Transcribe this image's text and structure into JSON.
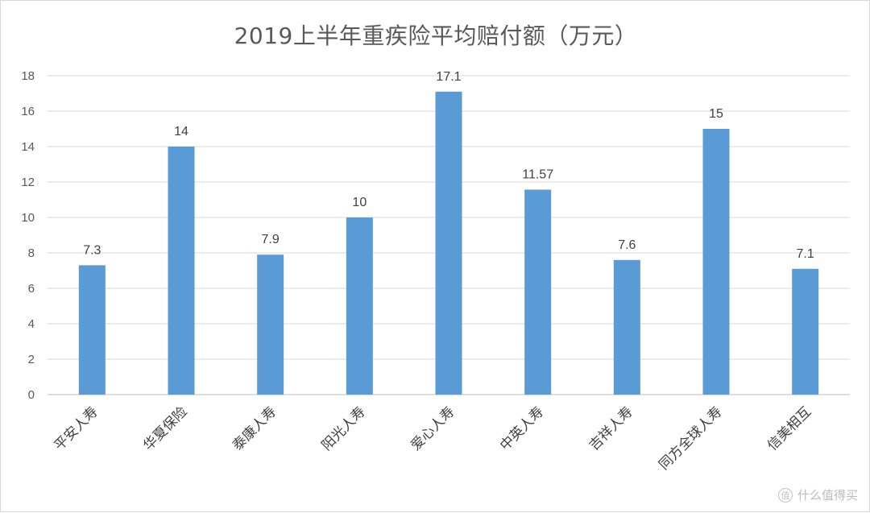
{
  "chart_data": {
    "type": "bar",
    "title": "2019上半年重疾险平均赔付额（万元）",
    "categories": [
      "平安人寿",
      "华夏保险",
      "泰康人寿",
      "阳光人寿",
      "爱心人寿",
      "中英人寿",
      "吉祥人寿",
      "同方全球人寿",
      "信美相互"
    ],
    "values": [
      7.3,
      14,
      7.9,
      10,
      17.1,
      11.57,
      7.6,
      15,
      7.1
    ],
    "data_labels": [
      "7.3",
      "14",
      "7.9",
      "10",
      "17.1",
      "11.57",
      "7.6",
      "15",
      "7.1"
    ],
    "ylim": [
      0,
      18
    ],
    "yticks": [
      0,
      2,
      4,
      6,
      8,
      10,
      12,
      14,
      16,
      18
    ],
    "xlabel": "",
    "ylabel": "",
    "grid": true,
    "bar_color": "#5b9bd5",
    "grid_color": "#d9d9d9"
  },
  "watermark": {
    "icon": "zhi-icon",
    "text": "什么值得买"
  }
}
